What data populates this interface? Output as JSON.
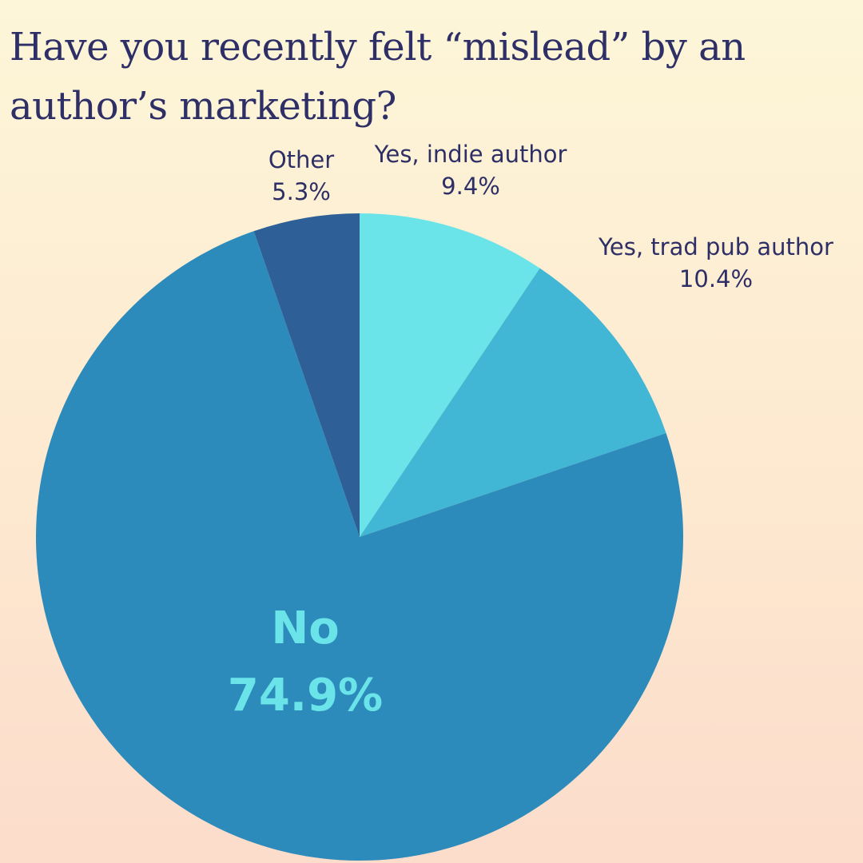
{
  "chart_data": {
    "type": "pie",
    "title": "Have you recently felt “mislead” by an author’s marketing?",
    "slices": [
      {
        "label": "Yes, indie author",
        "value": 9.4,
        "value_label": "9.4%",
        "color": "#6ae4e8",
        "label_placement": "outside"
      },
      {
        "label": "Yes, trad pub author",
        "value": 10.4,
        "value_label": "10.4%",
        "color": "#42b6d5",
        "label_placement": "outside"
      },
      {
        "label": "No",
        "value": 74.9,
        "value_label": "74.9%",
        "color": "#2d8bbb",
        "label_placement": "inside",
        "label_color": "#6ae4e8"
      },
      {
        "label": "Other",
        "value": 5.3,
        "value_label": "5.3%",
        "color": "#2e5f97",
        "label_placement": "outside"
      }
    ],
    "start_angle": "12 o'clock",
    "direction": "clockwise"
  }
}
